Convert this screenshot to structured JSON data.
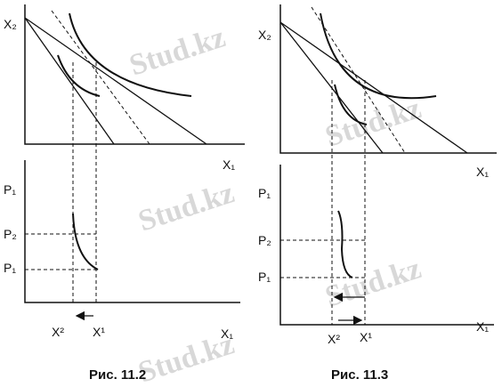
{
  "watermark": "Stud.kz",
  "figures": [
    {
      "caption": "Рис. 11.2",
      "top": {
        "y_label": "X₂",
        "x_label": "X₁"
      },
      "bottom": {
        "y_label": "P₁",
        "ticks": [
          "P₂",
          "P₁"
        ],
        "x_label": "X₁",
        "x_ticks": [
          "X²",
          "X¹"
        ]
      }
    },
    {
      "caption": "Рис. 11.3",
      "top": {
        "y_label": "X₂",
        "x_label": "X₁"
      },
      "bottom": {
        "y_label": "P₁",
        "ticks": [
          "P₂",
          "P₁"
        ],
        "x_label": "X₁",
        "x_ticks": [
          "X²",
          "X¹"
        ]
      }
    }
  ]
}
